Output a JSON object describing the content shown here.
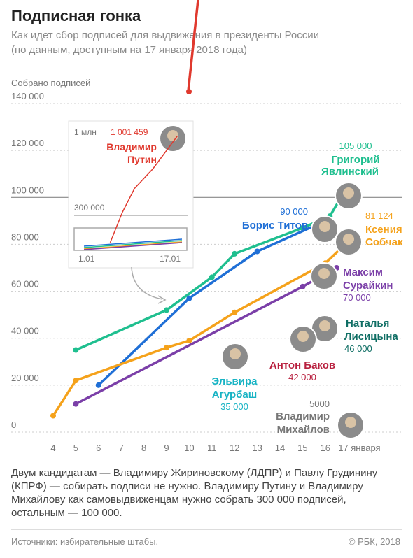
{
  "title": "Подписная гонка",
  "subtitle_line1": "Как идет сбор подписей для выдвижения в президенты России",
  "subtitle_line2": "(по данным, доступным на 17 января 2018 года)",
  "note": "Двум кандидатам — Владимиру Жириновскому (ЛДПР) и Павлу Грудинину (КПРФ) — собирать подписи не нужно. Владимиру Путину и Владимиру Михайлову как самовыдвиженцам нужно собрать 300 000 подписей, остальным — 100 000.",
  "source": "Источники: избирательные штабы.",
  "copyright": "© РБК, 2018",
  "colors": {
    "putin": "#e0392e",
    "yavlinsky": "#1fbf8f",
    "titov": "#1f6fd6",
    "sobchak": "#f5a21b",
    "suraikin": "#7b3fa8",
    "lisitsyna": "#0f6e64",
    "bakov": "#b81f3e",
    "agurbash": "#17b3c4",
    "mikhailov": "#777777",
    "grid": "#cccccc",
    "axis_text": "#777777"
  },
  "chart_data": {
    "type": "line",
    "title": "Подписная гонка",
    "ylabel": "Собрано подписей",
    "xlabel": "",
    "x_ticks": [
      "4",
      "5",
      "6",
      "7",
      "8",
      "9",
      "10",
      "11",
      "12",
      "13",
      "14",
      "15",
      "16",
      "17 января"
    ],
    "y_ticks": [
      "0",
      "20 000",
      "40 000",
      "60 000",
      "80 000",
      "100 000",
      "120 000",
      "140 000"
    ],
    "ylim": [
      0,
      140000
    ],
    "xlim": [
      4,
      17
    ],
    "reference_line": 100000,
    "series": [
      {
        "key": "putin",
        "name": "Владимир Путин",
        "value_label": "1 001 459",
        "points": [
          [
            10,
            146000
          ],
          [
            10.3,
            170000
          ]
        ]
      },
      {
        "key": "yavlinsky",
        "name": "Григорий Явлинский",
        "value_label": "105 000",
        "points": [
          [
            5,
            35000
          ],
          [
            9,
            52000
          ],
          [
            11,
            66000
          ],
          [
            12,
            76000
          ],
          [
            15,
            87000
          ],
          [
            16.2,
            92000
          ],
          [
            17,
            105000
          ]
        ]
      },
      {
        "key": "titov",
        "name": "Борис Титов",
        "value_label": "90 000",
        "points": [
          [
            6,
            20000
          ],
          [
            10,
            57000
          ],
          [
            13,
            77000
          ],
          [
            16,
            90000
          ]
        ]
      },
      {
        "key": "sobchak",
        "name": "Ксения Собчак",
        "value_label": "81 124",
        "points": [
          [
            4,
            7000
          ],
          [
            5,
            22000
          ],
          [
            9,
            36000
          ],
          [
            10,
            39000
          ],
          [
            12,
            51000
          ],
          [
            16,
            72000
          ],
          [
            17,
            81124
          ]
        ]
      },
      {
        "key": "suraikin",
        "name": "Максим Сурайкин",
        "value_label": "70 000",
        "points": [
          [
            5,
            12000
          ],
          [
            15,
            62000
          ],
          [
            16.5,
            70000
          ]
        ]
      },
      {
        "key": "lisitsyna",
        "name": "Наталья Лисицына",
        "value_label": "46 000",
        "points": []
      },
      {
        "key": "bakov",
        "name": "Антон Баков",
        "value_label": "42 000",
        "points": []
      },
      {
        "key": "agurbash",
        "name": "Эльвира Агурбаш",
        "value_label": "35 000",
        "points": []
      },
      {
        "key": "mikhailov",
        "name": "Владимир Михайлов",
        "value_label": "5000",
        "points": []
      }
    ],
    "inset": {
      "y_ticks": [
        "1 млн",
        "300 000"
      ],
      "x_ticks": [
        "1.01",
        "17.01"
      ],
      "putin_label": "1 001 459",
      "putin_name_line1": "Владимир",
      "putin_name_line2": "Путин",
      "putin_points": [
        [
          6,
          20000
        ],
        [
          8,
          300000
        ],
        [
          10,
          520000
        ],
        [
          13,
          700000
        ],
        [
          17,
          1001459
        ]
      ]
    }
  },
  "labels": {
    "yavlinsky": [
      "Григорий",
      "Явлинский"
    ],
    "titov": [
      "Борис Титов"
    ],
    "sobchak": [
      "Ксения",
      "Собчак"
    ],
    "suraikin": [
      "Максим",
      "Сурайкин"
    ],
    "lisitsyna": [
      "Наталья",
      "Лисицына"
    ],
    "bakov": [
      "Антон Баков"
    ],
    "agurbash": [
      "Эльвира",
      "Агурбаш"
    ],
    "mikhailov": [
      "Владимир",
      "Михайлов"
    ]
  }
}
